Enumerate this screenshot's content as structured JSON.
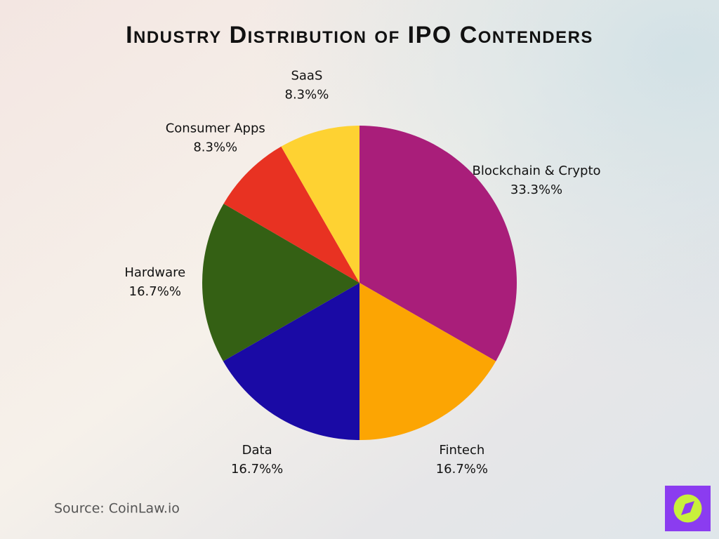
{
  "chart_data": {
    "type": "pie",
    "title": "Industry Distribution of IPO Contenders",
    "categories": [
      "Blockchain & Crypto",
      "Fintech",
      "Data",
      "Hardware",
      "Consumer Apps",
      "SaaS"
    ],
    "values": [
      33.3,
      16.7,
      16.7,
      16.7,
      8.3,
      8.3
    ],
    "value_labels": [
      "33.3%%",
      "16.7%%",
      "16.7%%",
      "16.7%%",
      "8.3%%",
      "8.3%%"
    ],
    "colors": [
      "#a91e7a",
      "#fca503",
      "#1a0aa5",
      "#346014",
      "#e83222",
      "#fed232"
    ],
    "source": "Source: CoinLaw.io"
  }
}
